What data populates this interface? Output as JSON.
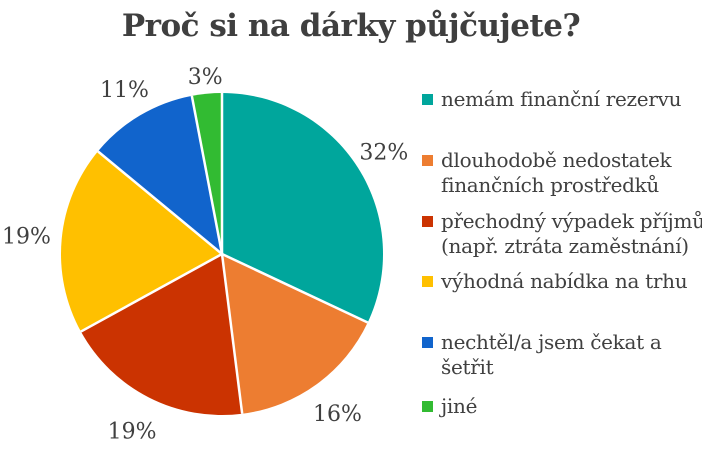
{
  "chart_data": {
    "type": "pie",
    "title": "Proč si na dárky půjčujete?",
    "unit": "%",
    "total": 100,
    "start_angle_deg": 0,
    "direction": "clockwise",
    "legend_position": "right",
    "slices": [
      {
        "label": "nemám finanční rezervu",
        "legend_lines": [
          "nemám finanční rezervu"
        ],
        "value": 32,
        "percent_label": "32%",
        "color": "#00A69C"
      },
      {
        "label": "dlouhodobě nedostatek finančních prostředků",
        "legend_lines": [
          "dlouhodobě nedostatek",
          "finančních prostředků"
        ],
        "value": 16,
        "percent_label": "16%",
        "color": "#ED7D31"
      },
      {
        "label": "přechodný výpadek příjmů (např. ztráta zaměstnání)",
        "legend_lines": [
          "přechodný výpadek příjmů",
          "(např. ztráta zaměstnání)"
        ],
        "value": 19,
        "percent_label": "19%",
        "color": "#CB3301"
      },
      {
        "label": "výhodná nabídka na trhu",
        "legend_lines": [
          "výhodná nabídka na trhu"
        ],
        "value": 19,
        "percent_label": "19%",
        "color": "#FFC000"
      },
      {
        "label": "nechtěl/a jsem čekat a šetřit",
        "legend_lines": [
          "nechtěl/a jsem čekat a",
          "šetřit"
        ],
        "value": 11,
        "percent_label": "11%",
        "color": "#1164CC"
      },
      {
        "label": "jiné",
        "legend_lines": [
          "jiné"
        ],
        "value": 3,
        "percent_label": "3%",
        "color": "#32BB32"
      }
    ],
    "colors": {
      "title_text": "#3F3F3F",
      "label_text": "#404040",
      "legend_text": "#404040",
      "separator": "#FFFFFF",
      "background": "#FFFFFF"
    }
  }
}
